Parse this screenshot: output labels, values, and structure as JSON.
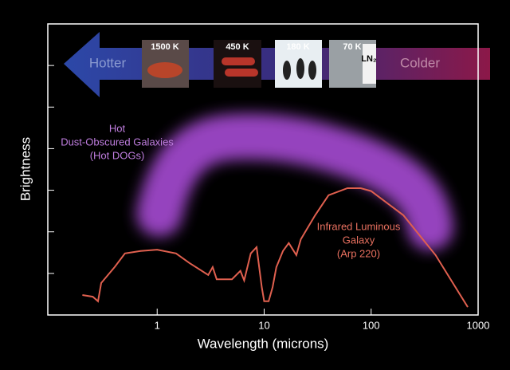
{
  "chart_data": {
    "type": "line",
    "x_label": "Wavelength (microns)",
    "y_label": "Brightness",
    "x_scale": "log",
    "xlim": [
      0.095,
      1000
    ],
    "xticks": [
      1,
      10,
      100,
      1000
    ],
    "ylim": [
      0,
      7
    ],
    "yticks": [
      1,
      2,
      3,
      4,
      5,
      6
    ],
    "series": [
      {
        "name": "Infrared Luminous Galaxy (Arp 220)",
        "color": "#e0604f",
        "x": [
          0.2,
          0.25,
          0.28,
          0.3,
          0.4,
          0.5,
          0.7,
          1,
          1.5,
          2,
          3,
          3.3,
          3.6,
          5,
          6,
          6.5,
          7.5,
          8.5,
          9.5,
          10,
          11,
          12,
          13,
          15,
          17,
          20,
          22,
          30,
          40,
          60,
          80,
          100,
          200,
          400,
          800
        ],
        "values": [
          0.48,
          0.44,
          0.33,
          0.77,
          1.15,
          1.48,
          1.54,
          1.57,
          1.48,
          1.25,
          0.96,
          1.15,
          0.86,
          0.86,
          1.06,
          0.83,
          1.48,
          1.63,
          0.67,
          0.33,
          0.33,
          0.67,
          1.15,
          1.54,
          1.73,
          1.44,
          1.82,
          2.4,
          2.88,
          3.05,
          3.05,
          2.98,
          2.4,
          1.44,
          0.19
        ]
      }
    ],
    "annotations": [
      {
        "lines": [
          "Hot",
          "Dust-Obscured Galaxies",
          "(Hot DOGs)"
        ],
        "color": "#c07ee0"
      },
      {
        "lines": [
          "Infrared Luminous",
          "Galaxy",
          "(Arp 220)"
        ],
        "color": "#e8705f"
      }
    ],
    "banner": {
      "left_label": "Hotter",
      "right_label": "Colder",
      "temperatures": [
        "1500 K",
        "450 K",
        "180 K",
        "70 K"
      ],
      "tag": "LN₂"
    }
  }
}
